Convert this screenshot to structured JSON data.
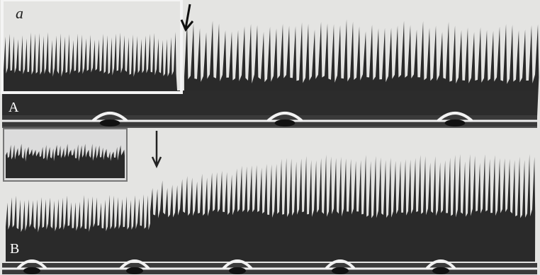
{
  "panel_label": "a",
  "traces": [
    {
      "label": "A"
    },
    {
      "label": "B"
    }
  ]
}
